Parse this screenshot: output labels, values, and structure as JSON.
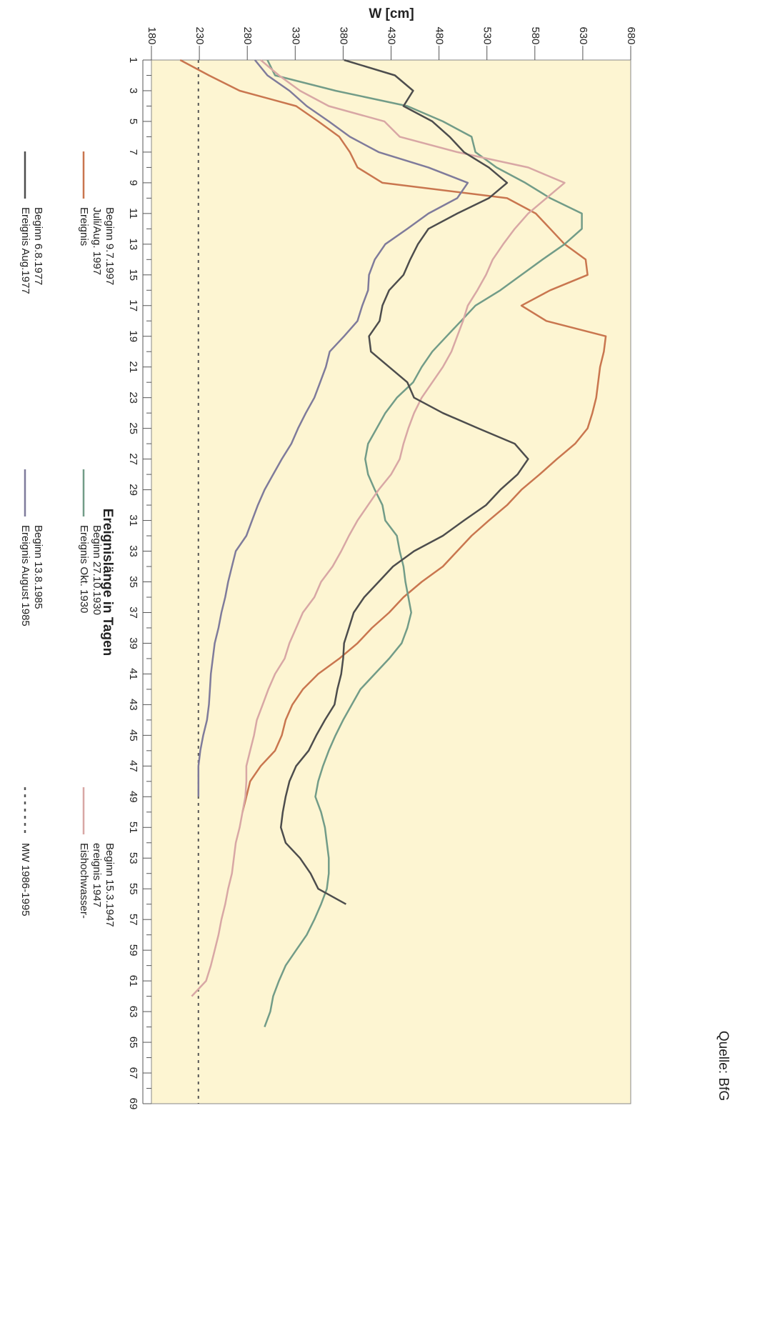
{
  "chart_data": {
    "type": "line",
    "xlabel": "Ereignislänge in Tagen",
    "ylabel": "W [cm]",
    "source": "Quelle: BfG",
    "x": [
      1,
      2,
      3,
      4,
      5,
      6,
      7,
      8,
      9,
      10,
      11,
      12,
      13,
      14,
      15,
      16,
      17,
      18,
      19,
      20,
      21,
      22,
      23,
      24,
      25,
      26,
      27,
      28,
      29,
      30,
      31,
      32,
      33,
      34,
      35,
      36,
      37,
      38,
      39,
      40,
      41,
      42,
      43,
      44,
      45,
      46,
      47,
      48,
      49,
      50,
      51,
      52,
      53,
      54,
      55,
      56,
      57,
      58,
      59,
      60,
      61,
      62,
      63,
      64,
      65,
      66,
      67,
      68,
      69
    ],
    "xlim": [
      1,
      69
    ],
    "xticks": [
      1,
      3,
      5,
      7,
      9,
      11,
      13,
      15,
      17,
      19,
      21,
      23,
      25,
      27,
      29,
      31,
      33,
      35,
      37,
      39,
      41,
      43,
      45,
      47,
      49,
      51,
      53,
      55,
      57,
      59,
      61,
      63,
      65,
      67,
      69
    ],
    "ylim": [
      180,
      680
    ],
    "yticks": [
      180,
      230,
      280,
      330,
      380,
      430,
      480,
      530,
      580,
      630,
      680
    ],
    "series": [
      {
        "name": "Ereignis\nJuli/Aug. 1997\nBeginn 9.7.1997",
        "color": "#c9764f",
        "values": [
          210,
          240,
          272,
          331,
          354,
          376,
          387,
          395,
          421,
          551,
          581,
          596,
          611,
          633,
          635,
          596,
          566,
          592,
          654,
          652,
          648,
          646,
          644,
          640,
          635,
          622,
          603,
          585,
          566,
          551,
          532,
          514,
          499,
          484,
          462,
          443,
          428,
          410,
          395,
          376,
          354,
          338,
          327,
          320,
          316,
          309,
          294,
          283,
          279,
          275,
          null,
          null,
          null,
          null,
          null,
          null,
          null,
          null,
          null,
          null,
          null,
          null,
          null,
          null,
          null,
          null,
          null,
          null,
          null
        ]
      },
      {
        "name": "Ereignis Okt. 1930\nBeginn 27.10.1930",
        "color": "#729c88",
        "values": [
          301,
          309,
          372,
          447,
          484,
          514,
          518,
          540,
          570,
          596,
          629,
          629,
          611,
          588,
          566,
          544,
          518,
          503,
          488,
          473,
          462,
          453,
          436,
          424,
          415,
          406,
          403,
          406,
          413,
          421,
          424,
          436,
          439,
          443,
          445,
          448,
          451,
          447,
          441,
          428,
          413,
          398,
          389,
          380,
          372,
          365,
          359,
          354,
          351,
          357,
          361,
          363,
          365,
          365,
          363,
          357,
          350,
          342,
          331,
          320,
          313,
          307,
          304,
          298,
          null,
          null,
          null,
          null,
          null
        ]
      },
      {
        "name": "Eishochwasser-\nereignis 1947\nBeginn 15.3.1947",
        "color": "#d8a7a5",
        "values": [
          294,
          313,
          335,
          365,
          423,
          439,
          499,
          573,
          611,
          592,
          573,
          559,
          547,
          536,
          529,
          520,
          510,
          505,
          499,
          493,
          484,
          473,
          462,
          454,
          448,
          443,
          439,
          430,
          417,
          406,
          395,
          386,
          378,
          369,
          357,
          350,
          338,
          331,
          324,
          319,
          309,
          302,
          296,
          290,
          287,
          283,
          279,
          279,
          278,
          275,
          272,
          268,
          266,
          264,
          260,
          257,
          253,
          250,
          246,
          242,
          237,
          222,
          null,
          null,
          null,
          null,
          null,
          null,
          null
        ]
      },
      {
        "name": "Ereignis Aug.1977\nBeginn 6.8.1977",
        "color": "#4d4d4d",
        "values": [
          381,
          434,
          453,
          443,
          473,
          491,
          506,
          532,
          551,
          532,
          499,
          469,
          458,
          450,
          443,
          428,
          421,
          418,
          407,
          409,
          428,
          447,
          454,
          484,
          521,
          559,
          573,
          562,
          544,
          529,
          506,
          484,
          454,
          432,
          417,
          402,
          391,
          386,
          381,
          380,
          378,
          374,
          371,
          361,
          352,
          344,
          331,
          324,
          320,
          317,
          315,
          320,
          335,
          346,
          354,
          383,
          null,
          null,
          null,
          null,
          null,
          null,
          null,
          null,
          null,
          null,
          null,
          null,
          null
        ]
      },
      {
        "name": "Ereignis August 1985\nBeginn 13.8.1985",
        "color": "#7f7b9b",
        "values": [
          288,
          301,
          324,
          342,
          365,
          387,
          417,
          469,
          510,
          499,
          469,
          447,
          424,
          413,
          407,
          406,
          400,
          395,
          381,
          366,
          362,
          356,
          350,
          341,
          333,
          326,
          316,
          307,
          298,
          291,
          285,
          279,
          268,
          264,
          260,
          257,
          253,
          250,
          246,
          244,
          242,
          241,
          240,
          238,
          234,
          231,
          229,
          229,
          229,
          null,
          null,
          null,
          null,
          null,
          null,
          null,
          null,
          null,
          null,
          null,
          null,
          null,
          null,
          null,
          null,
          null,
          null,
          null,
          null
        ]
      }
    ],
    "reference_line": {
      "name": "MW 1986-1995",
      "value": 229,
      "color": "#555555"
    },
    "background": "#fdf5d2"
  }
}
